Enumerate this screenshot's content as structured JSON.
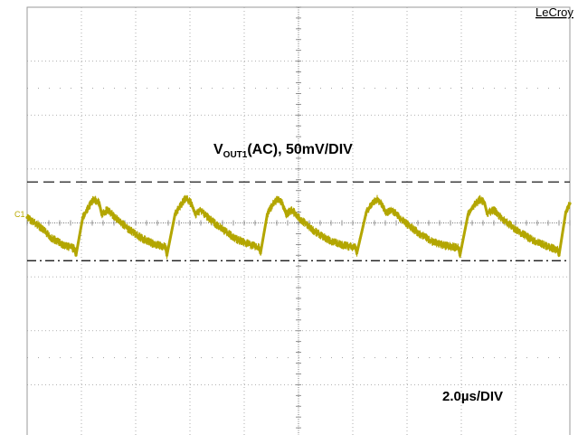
{
  "brand": "LeCroy",
  "channel_label": "C1",
  "annotations": {
    "vertical_main": "V",
    "vertical_sub": "OUT1",
    "vertical_rest": "(AC), 50mV/DIV",
    "timebase": "2.0µs/DIV"
  },
  "colors": {
    "trace": "#b3a600",
    "grid": "#9a9a9a",
    "axis": "#777777",
    "cursor": "#000000",
    "background": "#ffffff"
  },
  "chart_data": {
    "type": "line",
    "title": "",
    "xlabel": "",
    "ylabel": "",
    "grid": true,
    "divisions": {
      "x": 10,
      "y": 8
    },
    "x_unit": "µs",
    "y_unit": "mV",
    "xlim": [
      0,
      20
    ],
    "ylim": [
      -200,
      200
    ],
    "cursor_levels_mV": [
      38,
      -35
    ],
    "series": [
      {
        "points": [
          [
            0.0,
            5
          ],
          [
            0.4,
            -2
          ],
          [
            0.9,
            -14
          ],
          [
            1.3,
            -20
          ],
          [
            1.75,
            -24
          ],
          [
            1.8,
            -30
          ],
          [
            2.05,
            5
          ],
          [
            2.25,
            14
          ],
          [
            2.45,
            22
          ],
          [
            2.65,
            19
          ],
          [
            2.75,
            8
          ],
          [
            2.95,
            12
          ],
          [
            3.25,
            5
          ],
          [
            3.7,
            -5
          ],
          [
            4.2,
            -14
          ],
          [
            4.7,
            -20
          ],
          [
            5.1,
            -22
          ],
          [
            5.15,
            -30
          ],
          [
            5.45,
            8
          ],
          [
            5.7,
            18
          ],
          [
            5.85,
            23
          ],
          [
            6.05,
            18
          ],
          [
            6.2,
            8
          ],
          [
            6.4,
            12
          ],
          [
            6.7,
            4
          ],
          [
            7.2,
            -6
          ],
          [
            7.7,
            -15
          ],
          [
            8.2,
            -20
          ],
          [
            8.55,
            -23
          ],
          [
            8.6,
            -28
          ],
          [
            8.85,
            8
          ],
          [
            9.05,
            17
          ],
          [
            9.25,
            23
          ],
          [
            9.4,
            18
          ],
          [
            9.55,
            8
          ],
          [
            9.75,
            12
          ],
          [
            10.05,
            4
          ],
          [
            10.6,
            -8
          ],
          [
            11.2,
            -17
          ],
          [
            11.7,
            -21
          ],
          [
            12.1,
            -23
          ],
          [
            12.15,
            -28
          ],
          [
            12.5,
            10
          ],
          [
            12.75,
            19
          ],
          [
            12.9,
            22
          ],
          [
            13.05,
            18
          ],
          [
            13.25,
            9
          ],
          [
            13.45,
            12
          ],
          [
            13.8,
            3
          ],
          [
            14.4,
            -9
          ],
          [
            14.9,
            -17
          ],
          [
            15.4,
            -21
          ],
          [
            15.9,
            -23
          ],
          [
            15.95,
            -30
          ],
          [
            16.25,
            8
          ],
          [
            16.5,
            17
          ],
          [
            16.7,
            22
          ],
          [
            16.85,
            19
          ],
          [
            16.95,
            9
          ],
          [
            17.2,
            12
          ],
          [
            17.55,
            3
          ],
          [
            18.1,
            -8
          ],
          [
            18.7,
            -17
          ],
          [
            19.2,
            -22
          ],
          [
            19.55,
            -25
          ],
          [
            19.6,
            -30
          ],
          [
            19.85,
            10
          ],
          [
            20.0,
            18
          ]
        ]
      }
    ]
  }
}
